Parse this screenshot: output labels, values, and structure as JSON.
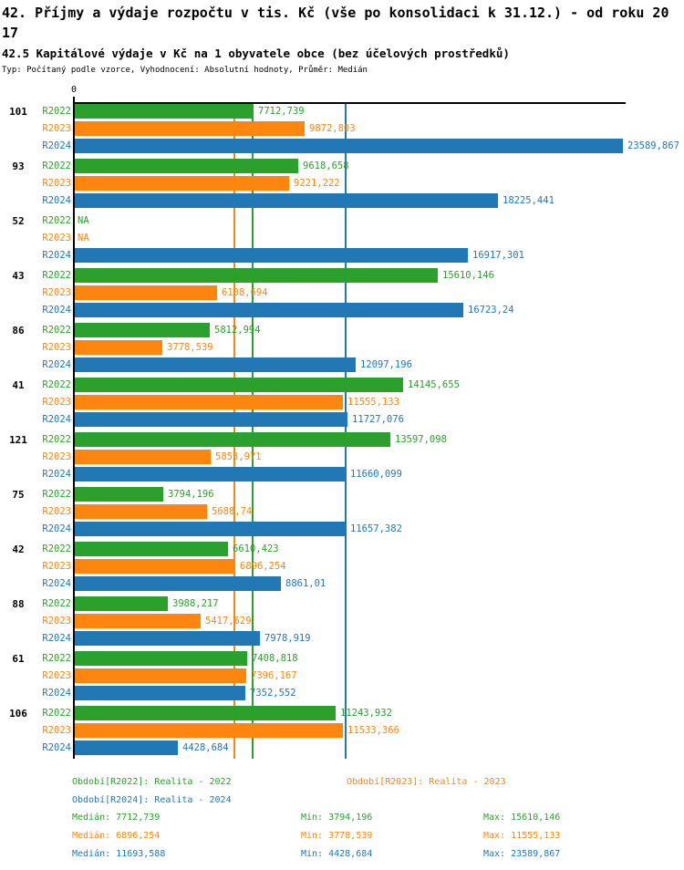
{
  "header": {
    "title": "42. Příjmy a výdaje rozpočtu v tis. Kč (vše po konsolidaci k 31.12.) - od roku 2017",
    "subtitle": "42.5 Kapitálové výdaje v Kč na 1 obyvatele obce (bez účelových prostředků)",
    "meta": "Typ: Počítaný podle vzorce, Vyhodnocení: Absolutní hodnoty, Průměr: Medián"
  },
  "colors": {
    "r2022": "#2ca02c",
    "r2023": "#fd870e",
    "r2024": "#2278b5",
    "axis": "#000000"
  },
  "axis": {
    "zero_label": "0"
  },
  "chart_data": {
    "type": "bar",
    "orientation": "horizontal",
    "xlim": [
      0,
      23700
    ],
    "x_ticks": [
      {
        "value": 0,
        "label": "0"
      }
    ],
    "series": [
      "R2022",
      "R2023",
      "R2024"
    ],
    "na_label": "NA",
    "groups": [
      {
        "label": "101",
        "values": [
          7712.739,
          9872.803,
          23589.867
        ],
        "value_labels": [
          "7712,739",
          "9872,803",
          "23589,867"
        ]
      },
      {
        "label": "93",
        "values": [
          9618.658,
          9221.222,
          18225.441
        ],
        "value_labels": [
          "9618,658",
          "9221,222",
          "18225,441"
        ]
      },
      {
        "label": "52",
        "values": [
          null,
          null,
          16917.301
        ],
        "value_labels": [
          "NA",
          "NA",
          "16917,301"
        ]
      },
      {
        "label": "43",
        "values": [
          15610.146,
          6108.694,
          16723.24
        ],
        "value_labels": [
          "15610,146",
          "6108,694",
          "16723,24"
        ]
      },
      {
        "label": "86",
        "values": [
          5812.994,
          3778.539,
          12097.196
        ],
        "value_labels": [
          "5812,994",
          "3778,539",
          "12097,196"
        ]
      },
      {
        "label": "41",
        "values": [
          14145.655,
          11555.133,
          11727.076
        ],
        "value_labels": [
          "14145,655",
          "11555,133",
          "11727,076"
        ]
      },
      {
        "label": "121",
        "values": [
          13597.098,
          5853.971,
          11660.099
        ],
        "value_labels": [
          "13597,098",
          "5853,971",
          "11660,099"
        ]
      },
      {
        "label": "75",
        "values": [
          3794.196,
          5688.74,
          11657.382
        ],
        "value_labels": [
          "3794,196",
          "5688,74",
          "11657,382"
        ]
      },
      {
        "label": "42",
        "values": [
          6610.423,
          6896.254,
          8861.01
        ],
        "value_labels": [
          "6610,423",
          "6896,254",
          "8861,01"
        ]
      },
      {
        "label": "88",
        "values": [
          3988.217,
          5417.629,
          7978.919
        ],
        "value_labels": [
          "3988,217",
          "5417,629",
          "7978,919"
        ]
      },
      {
        "label": "61",
        "values": [
          7408.818,
          7396.167,
          7352.552
        ],
        "value_labels": [
          "7408,818",
          "7396,167",
          "7352,552"
        ]
      },
      {
        "label": "106",
        "values": [
          11243.932,
          11533.366,
          4428.684
        ],
        "value_labels": [
          "11243,932",
          "11533,366",
          "4428,684"
        ]
      }
    ],
    "median_lines": [
      {
        "series": "R2022",
        "value": 7712.739
      },
      {
        "series": "R2023",
        "value": 6896.254
      },
      {
        "series": "R2024",
        "value": 11693.588
      }
    ]
  },
  "legend": {
    "items": [
      {
        "series": "R2022",
        "text": "Období[R2022]: Realita - 2022"
      },
      {
        "series": "R2023",
        "text": "Období[R2023]: Realita - 2023"
      },
      {
        "series": "R2024",
        "text": "Období[R2024]: Realita - 2024"
      }
    ]
  },
  "stats": {
    "rows": [
      {
        "series": "R2022",
        "median": "Medián: 7712,739",
        "min": "Min: 3794,196",
        "max": "Max: 15610,146"
      },
      {
        "series": "R2023",
        "median": "Medián: 6896,254",
        "min": "Min: 3778,539",
        "max": "Max: 11555,133"
      },
      {
        "series": "R2024",
        "median": "Medián: 11693,588",
        "min": "Min: 4428,684",
        "max": "Max: 23589,867"
      }
    ]
  }
}
